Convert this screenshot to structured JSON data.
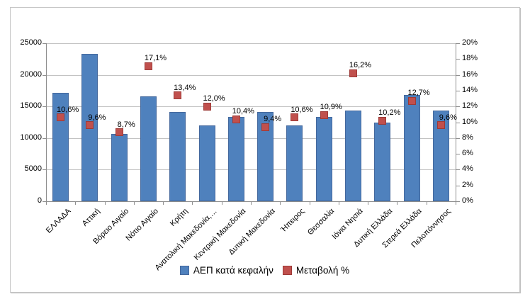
{
  "chart_data": {
    "type": "bar",
    "title": "",
    "categories": [
      "ΕΛΛΑΔΑ",
      "Αττική",
      "Βόρειο Αιγαίο",
      "Νότιο Αιγαίο",
      "Κρήτη",
      "Ανατολική Μακεδονία,…",
      "Κεντρική Μακεδονία",
      "Δυτική Μακεδονία",
      "Ήπειρος",
      "Θεσσαλία",
      "Ιόνια Νησιά",
      "Δυτική Ελλάδα",
      "Στερεά Ελλάδα",
      "Πελοπόννησος"
    ],
    "series": [
      {
        "name": "ΑΕΠ κατά κεφαλήν",
        "type": "bar",
        "axis": "left",
        "color": "#4f81bd",
        "values": [
          17100,
          23300,
          10650,
          16600,
          14100,
          12000,
          13350,
          14150,
          12000,
          13350,
          14400,
          12500,
          16800,
          14400
        ]
      },
      {
        "name": "Μεταβολή %",
        "type": "point",
        "axis": "right",
        "color": "#c0504d",
        "values": [
          10.6,
          9.6,
          8.7,
          17.1,
          13.4,
          12.0,
          10.4,
          9.4,
          10.6,
          10.9,
          16.2,
          10.2,
          12.7,
          9.6
        ],
        "point_labels": [
          "10,6%",
          "9,6%",
          "8,7%",
          "17,1%",
          "13,4%",
          "12,0%",
          "10,4%",
          "9,4%",
          "10,6%",
          "10,9%",
          "16,2%",
          "10,2%",
          "12,7%",
          "9,6%"
        ]
      }
    ],
    "left_axis": {
      "min": 0,
      "max": 25000,
      "step": 5000,
      "tick_labels": [
        "0",
        "5000",
        "10000",
        "15000",
        "20000",
        "25000"
      ]
    },
    "right_axis": {
      "min": 0,
      "max": 20,
      "step": 2,
      "tick_labels": [
        "0%",
        "2%",
        "4%",
        "6%",
        "8%",
        "10%",
        "12%",
        "14%",
        "16%",
        "18%",
        "20%"
      ]
    },
    "grid": "horizontal-at-left-axis-steps",
    "legend_position": "bottom"
  },
  "colors": {
    "bar_fill": "#4f81bd",
    "bar_edge": "#44689d",
    "marker_fill": "#c0504d",
    "marker_edge": "#9e3a37",
    "gridline": "#c3c3c3",
    "axis_line": "#8e8e8e",
    "frame_border": "#c6c6c6",
    "text": "#000000"
  }
}
